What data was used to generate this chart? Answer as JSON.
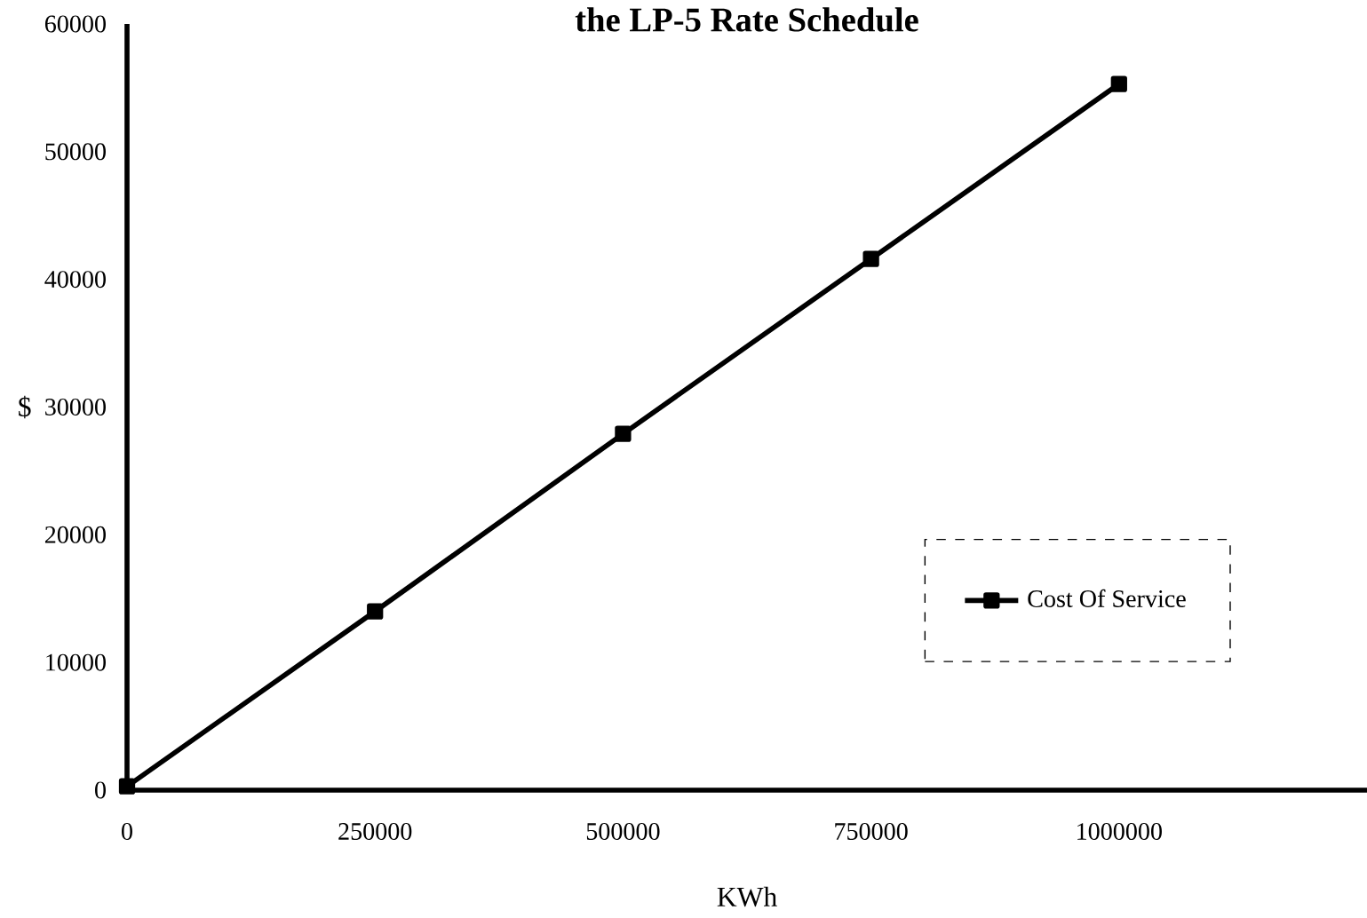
{
  "chart_data": {
    "type": "line",
    "title": "the LP-5 Rate Schedule",
    "xlabel": "KWh",
    "ylabel": "$",
    "x": [
      0,
      250000,
      500000,
      750000,
      1000000
    ],
    "series": [
      {
        "name": "Cost Of Service",
        "color": "#000000",
        "values": [
          300,
          14000,
          27900,
          41600,
          55300
        ]
      }
    ],
    "xlim": [
      0,
      1250000
    ],
    "xticks": [
      0,
      250000,
      500000,
      750000,
      1000000
    ],
    "ylim": [
      0,
      60000
    ],
    "yticks": [
      0,
      10000,
      20000,
      30000,
      40000,
      50000,
      60000
    ],
    "marker": "square",
    "line_style": "solid",
    "legend": "right",
    "grid": false
  }
}
